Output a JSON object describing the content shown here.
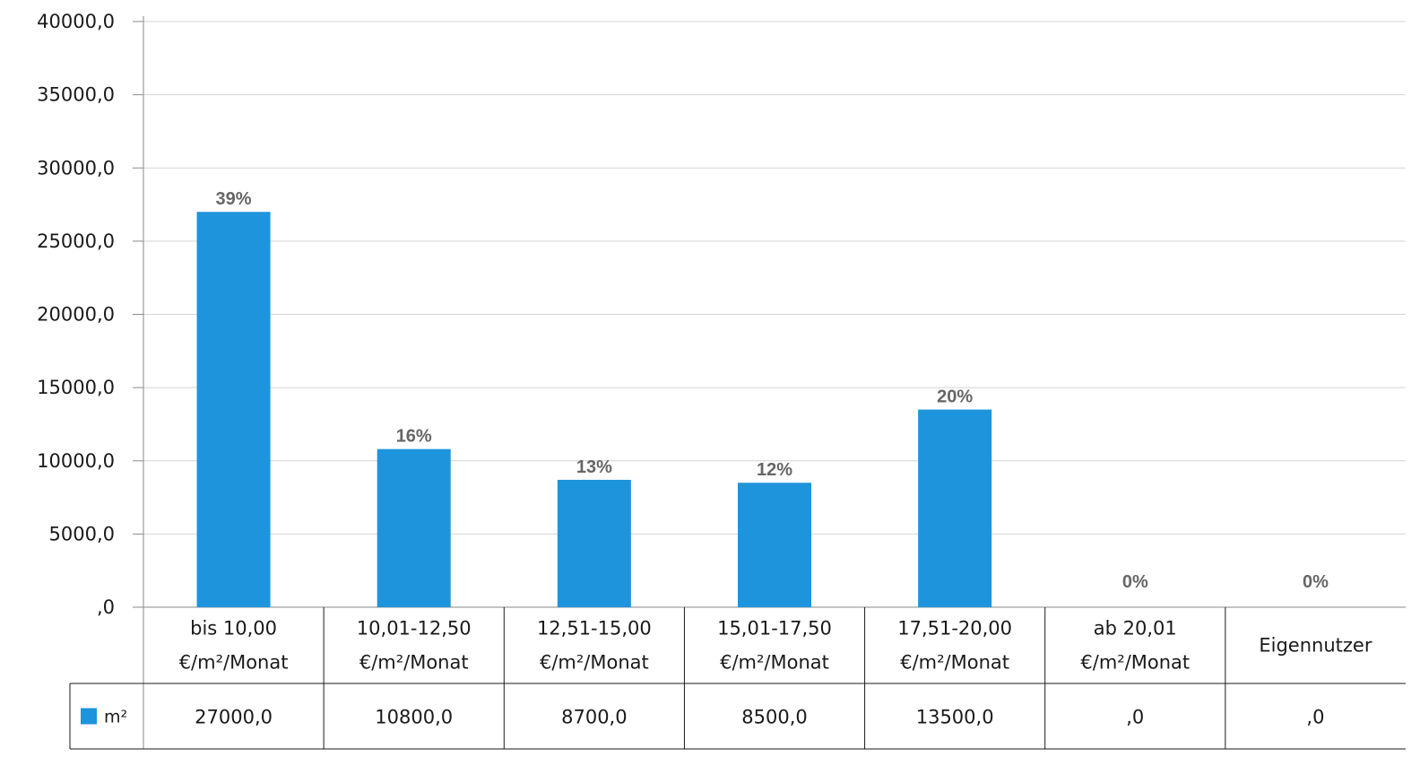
{
  "chart_data": {
    "type": "bar",
    "categories": [
      [
        "bis 10,00",
        "€/m²/Monat"
      ],
      [
        "10,01-12,50",
        "€/m²/Monat"
      ],
      [
        "12,51-15,00",
        "€/m²/Monat"
      ],
      [
        "15,01-17,50",
        "€/m²/Monat"
      ],
      [
        "17,51-20,00",
        "€/m²/Monat"
      ],
      [
        "ab 20,01",
        "€/m²/Monat"
      ],
      [
        "Eigennutzer"
      ]
    ],
    "series": [
      {
        "name": "m²",
        "values": [
          27000,
          10800,
          8700,
          8500,
          13500,
          0,
          0
        ],
        "color": "#1e94dc"
      }
    ],
    "data_labels": [
      "39%",
      "16%",
      "13%",
      "12%",
      "20%",
      "0%",
      "0%"
    ],
    "table_values": [
      "27000,0",
      "10800,0",
      "8700,0",
      "8500,0",
      "13500,0",
      ",0",
      ",0"
    ],
    "y_ticks": [
      ",0",
      "5000,0",
      "10000,0",
      "15000,0",
      "20000,0",
      "25000,0",
      "30000,0",
      "35000,0",
      "40000,0"
    ],
    "ylim": [
      0,
      40000
    ],
    "y_step": 5000,
    "grid": true,
    "legend": "data-table-left",
    "title": "",
    "xlabel": "",
    "ylabel": ""
  }
}
